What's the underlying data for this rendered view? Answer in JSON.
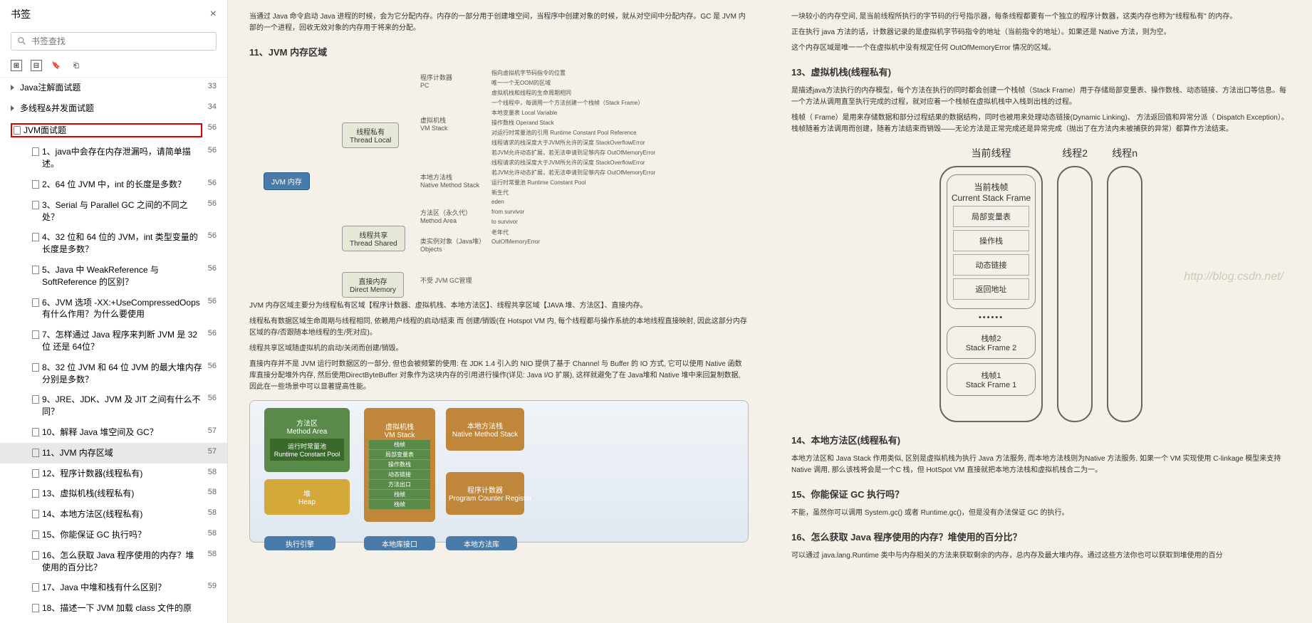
{
  "sidebar": {
    "title": "书签",
    "search_placeholder": "书签查找",
    "items": [
      {
        "label": "Java注解面试题",
        "page": "33",
        "indent": 0,
        "arrow": true
      },
      {
        "label": "多线程&并发面试题",
        "page": "34",
        "indent": 0,
        "arrow": true
      },
      {
        "label": "JVM面试题",
        "page": "56",
        "indent": 0,
        "highlighted": true,
        "icon": true
      },
      {
        "label": "1、java中会存在内存泄漏吗，请简单描述。",
        "page": "56",
        "indent": 2,
        "icon": true
      },
      {
        "label": "2、64 位 JVM 中，int 的长度是多数？",
        "page": "56",
        "indent": 2,
        "icon": true
      },
      {
        "label": "3、Serial 与 Parallel GC 之间的不同之处？",
        "page": "56",
        "indent": 2,
        "icon": true
      },
      {
        "label": "4、32 位和 64 位的 JVM，int 类型变量的长度是多数？",
        "page": "56",
        "indent": 2,
        "icon": true
      },
      {
        "label": "5、Java 中 WeakReference 与 SoftReference 的区别？",
        "page": "56",
        "indent": 2,
        "icon": true
      },
      {
        "label": "6、JVM 选项 -XX:+UseCompressedOops 有什么作用？为什么要使用",
        "page": "56",
        "indent": 2,
        "icon": true
      },
      {
        "label": "7、怎样通过 Java 程序来判断 JVM 是 32 位 还是 64位？",
        "page": "56",
        "indent": 2,
        "icon": true
      },
      {
        "label": "8、32 位 JVM 和 64 位 JVM 的最大堆内存分别是多数？",
        "page": "56",
        "indent": 2,
        "icon": true
      },
      {
        "label": "9、JRE、JDK、JVM 及 JIT 之间有什么不同？",
        "page": "56",
        "indent": 2,
        "icon": true
      },
      {
        "label": "10、解释 Java 堆空间及 GC？",
        "page": "57",
        "indent": 2,
        "icon": true
      },
      {
        "label": "11、JVM 内存区域",
        "page": "57",
        "indent": 2,
        "icon": true,
        "active": true
      },
      {
        "label": "12、程序计数器(线程私有)",
        "page": "58",
        "indent": 2,
        "icon": true
      },
      {
        "label": "13、虚拟机栈(线程私有)",
        "page": "58",
        "indent": 2,
        "icon": true
      },
      {
        "label": "14、本地方法区(线程私有)",
        "page": "58",
        "indent": 2,
        "icon": true
      },
      {
        "label": "15、你能保证 GC 执行吗？",
        "page": "58",
        "indent": 2,
        "icon": true
      },
      {
        "label": "16、怎么获取 Java 程序使用的内存？堆使用的百分比？",
        "page": "58",
        "indent": 2,
        "icon": true
      },
      {
        "label": "17、Java 中堆和栈有什么区别？",
        "page": "59",
        "indent": 2,
        "icon": true
      },
      {
        "label": "18、描述一下 JVM 加载 class 文件的原",
        "page": "",
        "indent": 2,
        "icon": true
      }
    ]
  },
  "page1": {
    "intro1": "当通过 Java 命令启动 Java 进程的时候，会为它分配内存。内存的一部分用于创建堆空间，当程序中创建对象的时候，就从对空间中分配内存。GC 是 JVM 内部的一个进程，回收无效对象的内存用于将来的分配。",
    "h11": "11、JVM 内存区域",
    "mindmap": {
      "root": "JVM 内存",
      "thread_local": "线程私有\nThread Local",
      "thread_shared": "线程共享\nThread Shared",
      "direct_mem": "直接内存\nDirect Memory",
      "pc": "程序计数器\nPC",
      "vm_stack": "虚拟机栈\nVM Stack",
      "native_stack": "本地方法栈\nNative Method Stack",
      "method_area": "方法区（永久代）\nMethod Area",
      "objects": "类实例对象（Java堆）\nObjects",
      "direct_note": "不受 JVM GC管理",
      "pc_notes": [
        "指向虚拟机字节码指令的位置",
        "唯一一个无OOM的区域"
      ],
      "vm_notes": [
        "虚拟机栈和线程的生命周期相同",
        "一个线程中，每调用一个方法创建一个栈帧（Stack Frame）",
        "本地变量表 Local Variable",
        "操作数栈 Operand Stack",
        "对运行时常量池的引用 Runtime Constant Pool Reference",
        "线程请求的栈深度大于JVM所允许的深度 StackOverflowError",
        "若JVM允许动态扩展，若无法申请到足够内存 OutOfMemoryError"
      ],
      "native_notes": [
        "线程请求的栈深度大于JVM所允许的深度 StackOverflowError",
        "若JVM允许动态扩展，若无法申请到足够内存 OutOfMemoryError"
      ],
      "method_notes": [
        "运行时常量池 Runtime Constant Pool"
      ],
      "heap_notes": [
        "新生代",
        "eden",
        "from survivor",
        "to survivor",
        "老年代",
        "OutOfMemoryError"
      ]
    },
    "p1": "JVM 内存区域主要分为线程私有区域【程序计数器、虚拟机栈、本地方法区】、线程共享区域【JAVA 堆、方法区】、直接内存。",
    "p2": "线程私有数据区域生命周期与线程相同, 依赖用户线程的启动/结束 而 创建/销毁(在 Hotspot VM 内, 每个线程都与操作系统的本地线程直接映射, 因此这部分内存区域的存/否跟随本地线程的生/死对应)。",
    "p3": "线程共享区域随虚拟机的启动/关闭而创建/销毁。",
    "p4": "直接内存并不是 JVM 运行时数据区的一部分, 但也会被频繁的使用: 在 JDK 1.4 引入的 NIO 提供了基于 Channel 与 Buffer 的 IO 方式, 它可以使用 Native 函数库直接分配堆外内存, 然后使用DirectByteBuffer 对象作为这块内存的引用进行操作(详见: Java I/O 扩展), 这样就避免了在 Java堆和 Native 堆中来回复制数据, 因此在一些场景中可以显著提高性能。",
    "memdiag": {
      "method_area": {
        "label": "方法区\nMethod Area",
        "sub": "运行时常量池\nRuntime Constant Pool",
        "color": "#5a8a4a"
      },
      "heap": {
        "label": "堆\nHeap",
        "color": "#d4a93a"
      },
      "vm_stack": {
        "label": "虚拟机栈\nVM Stack",
        "color": "#c0873a",
        "items": [
          "栈帧",
          "局部变量表",
          "操作数栈",
          "动态链接",
          "方法出口",
          "栈帧",
          "栈帧"
        ]
      },
      "native_stack": {
        "label": "本地方法栈\nNative Method Stack",
        "color": "#c0873a"
      },
      "pc_register": {
        "label": "程序计数器\nProgram Counter Register",
        "color": "#c0873a"
      },
      "exec_engine": "执行引擎",
      "native_lib": "本地库接口",
      "native_libs": "本地方法库"
    }
  },
  "page2": {
    "intro": "一块较小的内存空间, 是当前线程所执行的字节码的行号指示器，每条线程都要有一个独立的程序计数器，这类内存也称为\"线程私有\" 的内存。",
    "p1": "正在执行 java 方法的话，计数器记录的是虚拟机字节码指令的地址（当前指令的地址）。如果还是 Native 方法，则为空。",
    "p2": "这个内存区域是唯一一个在虚拟机中没有规定任何 OutOfMemoryError 情况的区域。",
    "h13": "13、虚拟机栈(线程私有)",
    "p13a": "是描述java方法执行的内存模型，每个方法在执行的同时都会创建一个栈帧（Stack Frame）用于存储局部变量表、操作数栈、动态链接、方法出口等信息。每一个方法从调用直至执行完成的过程，就对应着一个栈帧在虚拟机栈中入栈到出栈的过程。",
    "p13b": "栈帧（ Frame）是用来存储数据和部分过程结果的数据结构，同时也被用来处理动态链接(Dynamic Linking)、 方法返回值和异常分派（ Dispatch Exception）。栈帧随着方法调用而创建，随着方法结束而销毁——无论方法是正常完成还是异常完成（抛出了在方法内未被捕获的异常）都算作方法结束。",
    "stack": {
      "current_thread": "当前线程",
      "thread2": "线程2",
      "threadn": "线程n",
      "current_frame": "当前栈帧\nCurrent Stack Frame",
      "local_vars": "局部变量表",
      "op_stack": "操作栈",
      "dyn_link": "动态链接",
      "return_addr": "返回地址",
      "frame2": "栈帧2\nStack Frame 2",
      "frame1": "栈帧1\nStack Frame 1"
    },
    "watermark": "http://blog.csdn.net/",
    "h14": "14、本地方法区(线程私有)",
    "p14": "本地方法区和 Java Stack 作用类似, 区别是虚拟机栈为执行 Java 方法服务, 而本地方法栈则为Native 方法服务, 如果一个 VM 实现使用 C-linkage 模型来支持 Native 调用, 那么该栈将会是一个C 栈，但 HotSpot VM 直接就把本地方法栈和虚拟机栈合二为一。",
    "h15": "15、你能保证 GC 执行吗？",
    "p15": "不能，虽然你可以调用 System.gc() 或者 Runtime.gc()，但是没有办法保证 GC 的执行。",
    "h16": "16、怎么获取 Java 程序使用的内存？堆使用的百分比？",
    "p16": "可以通过 java.lang.Runtime 类中与内存相关的方法来获取剩余的内存，总内存及最大堆内存。通过这些方法你也可以获取到堆使用的百分"
  }
}
